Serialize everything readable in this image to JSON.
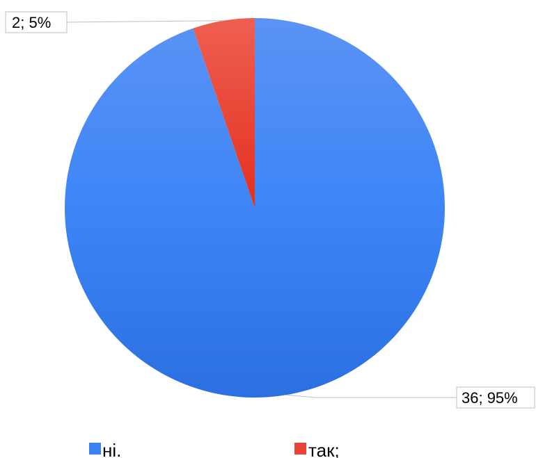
{
  "chart_data": {
    "type": "pie",
    "categories": [
      "ні.",
      "так;"
    ],
    "values": [
      36,
      2
    ],
    "percent_labels": [
      "95%",
      "5%"
    ],
    "data_labels": [
      "36; 95%",
      "2; 5%"
    ],
    "colors": [
      "#3b82f6",
      "#ea4335"
    ],
    "start_angle": "12 o'clock",
    "direction": "clockwise",
    "legend_position": "bottom",
    "title": ""
  }
}
